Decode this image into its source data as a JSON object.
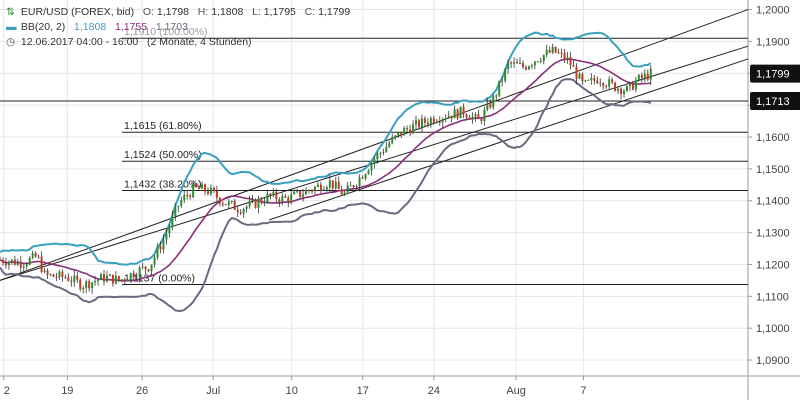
{
  "legend": {
    "symbol_instrument": "⇅",
    "instrument": "EUR/USD (FOREX, bid)",
    "open_label": "O:",
    "open": "1,1798",
    "high_label": "H:",
    "high": "1,1808",
    "low_label": "L:",
    "low": "1,1795",
    "close_label": "C:",
    "close": "1,1799",
    "symbol_bb": "▬",
    "bb_label": "BB(20, 2)",
    "bb_upper": "1,1808",
    "bb_middle": "1,1755",
    "bb_lower": "1,1703",
    "symbol_clock": "◷",
    "timeframe": "12.06.2017 04:00 - 16:00",
    "period": "(2 Monate, 4 Stunden)"
  },
  "colors": {
    "up": "#2e8b2e",
    "down": "#c0392b",
    "bb_upper": "#3aa0c0",
    "bb_middle": "#8a2f7a",
    "bb_lower": "#6a6a80",
    "price_box": "#111111",
    "grid": "#e6e6e6"
  },
  "chart_data": {
    "type": "candlestick",
    "x_ticks": [
      "2",
      "19",
      "26",
      "Jul",
      "10",
      "17",
      "24",
      "Aug",
      "7"
    ],
    "y_ticks": [
      "1,2000",
      "1,1900",
      "1,1800",
      "1,1700",
      "1,1600",
      "1,1500",
      "1,1400",
      "1,1300",
      "1,1200",
      "1,1100",
      "1,1000",
      "1,0900"
    ],
    "ylim": [
      1.085,
      1.203
    ],
    "price_labels": [
      {
        "label": "1,1799",
        "value": 1.1799,
        "style": "filled"
      },
      {
        "label": "1,1713",
        "value": 1.1713,
        "style": "filled"
      }
    ],
    "fibonacci": [
      {
        "label": "1,1615 (61.80%)",
        "value": 1.1615
      },
      {
        "label": "1,1524 (50.00%)",
        "value": 1.1524
      },
      {
        "label": "1,1432 (38.20%)",
        "value": 1.1432
      },
      {
        "label": "1,1137 (0.00%)",
        "value": 1.1137
      },
      {
        "label": "1,1910 (100.00%)",
        "value": 1.191
      }
    ],
    "horizontal_lines": [
      1.1713
    ],
    "trend_lines": [
      {
        "from": [
          0.0,
          1.115
        ],
        "to": [
          1.0,
          1.2
        ]
      },
      {
        "from": [
          0.0,
          1.115
        ],
        "to": [
          1.0,
          1.1885
        ]
      },
      {
        "from": [
          0.36,
          1.134
        ],
        "to": [
          1.0,
          1.1845
        ]
      }
    ],
    "price_path": [
      [
        0.0,
        1.1215
      ],
      [
        0.03,
        1.1205
      ],
      [
        0.05,
        1.1225
      ],
      [
        0.06,
        1.1165
      ],
      [
        0.09,
        1.116
      ],
      [
        0.11,
        1.1135
      ],
      [
        0.14,
        1.116
      ],
      [
        0.16,
        1.115
      ],
      [
        0.18,
        1.1175
      ],
      [
        0.2,
        1.1195
      ],
      [
        0.22,
        1.1285
      ],
      [
        0.24,
        1.1395
      ],
      [
        0.26,
        1.144
      ],
      [
        0.28,
        1.143
      ],
      [
        0.3,
        1.1395
      ],
      [
        0.32,
        1.1375
      ],
      [
        0.34,
        1.139
      ],
      [
        0.36,
        1.1415
      ],
      [
        0.38,
        1.1405
      ],
      [
        0.4,
        1.142
      ],
      [
        0.42,
        1.144
      ],
      [
        0.44,
        1.146
      ],
      [
        0.46,
        1.142
      ],
      [
        0.48,
        1.147
      ],
      [
        0.5,
        1.153
      ],
      [
        0.52,
        1.158
      ],
      [
        0.54,
        1.162
      ],
      [
        0.56,
        1.164
      ],
      [
        0.58,
        1.166
      ],
      [
        0.6,
        1.167
      ],
      [
        0.62,
        1.168
      ],
      [
        0.64,
        1.165
      ],
      [
        0.66,
        1.172
      ],
      [
        0.68,
        1.183
      ],
      [
        0.7,
        1.182
      ],
      [
        0.72,
        1.185
      ],
      [
        0.74,
        1.187
      ],
      [
        0.76,
        1.184
      ],
      [
        0.78,
        1.176
      ],
      [
        0.8,
        1.1785
      ],
      [
        0.82,
        1.176
      ],
      [
        0.84,
        1.1745
      ],
      [
        0.85,
        1.1775
      ],
      [
        0.87,
        1.1799
      ]
    ]
  }
}
